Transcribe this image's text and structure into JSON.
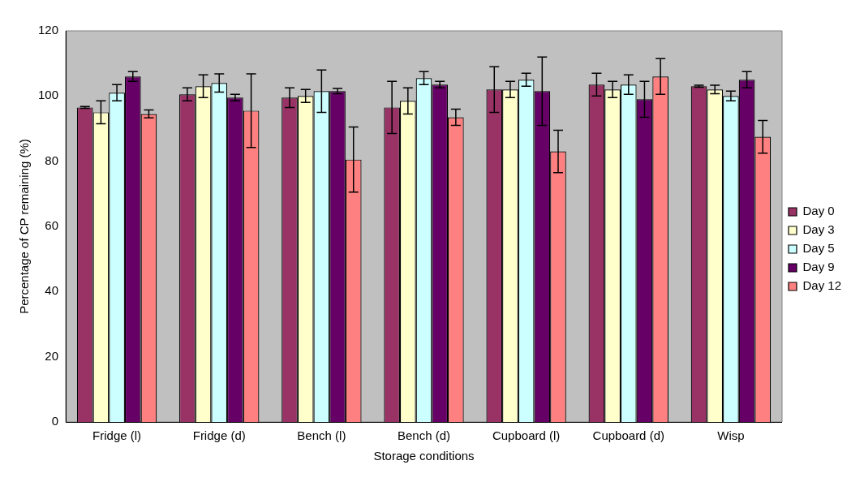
{
  "chart_data": {
    "type": "bar",
    "xlabel": "Storage conditions",
    "ylabel": "Percentage of CP remaining (%)",
    "categories": [
      "Fridge (l)",
      "Fridge (d)",
      "Bench (l)",
      "Bench (d)",
      "Cupboard (l)",
      "Cupboard (d)",
      "Wisp"
    ],
    "series": [
      {
        "name": "Day 0",
        "color": "#993366",
        "values": [
          96.5,
          100.5,
          99.5,
          96.5,
          102,
          103.5,
          103
        ],
        "errors": [
          0.3,
          2,
          3,
          8,
          7,
          3.5,
          0.3
        ]
      },
      {
        "name": "Day 3",
        "color": "#ffffcc",
        "values": [
          95,
          103,
          100,
          98.5,
          102,
          102,
          102
        ],
        "errors": [
          3.5,
          3.5,
          2,
          4,
          2.5,
          2.5,
          1.3
        ]
      },
      {
        "name": "Day 5",
        "color": "#ccffff",
        "values": [
          101,
          104,
          101.5,
          105.5,
          105,
          103.5,
          100
        ],
        "errors": [
          2.5,
          2.8,
          6.5,
          2,
          2,
          3,
          1.5
        ]
      },
      {
        "name": "Day 9",
        "color": "#660066",
        "values": [
          106,
          99.5,
          101.5,
          103.5,
          101.5,
          99,
          105
        ],
        "errors": [
          1.5,
          1,
          0.8,
          1,
          10.5,
          5.5,
          2.5
        ]
      },
      {
        "name": "Day 12",
        "color": "#ff8080",
        "values": [
          94.5,
          95.5,
          80.5,
          93.5,
          83,
          106,
          87.5
        ],
        "errors": [
          1.2,
          11.3,
          10,
          2.5,
          6.5,
          5.5,
          5
        ]
      }
    ],
    "ylim": [
      0,
      120
    ],
    "yticks": [
      0,
      20,
      40,
      60,
      80,
      100,
      120
    ],
    "grid": false,
    "legend": "right"
  }
}
